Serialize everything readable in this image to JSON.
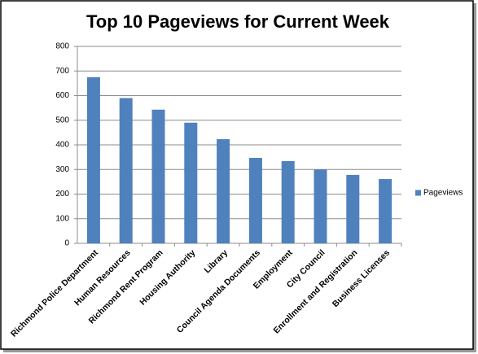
{
  "chart_data": {
    "type": "bar",
    "title": "Top 10 Pageviews for Current Week",
    "categories": [
      "Richmond Police Department",
      "Human Resources",
      "Richmond Rent Program",
      "Housing Authority",
      "Library",
      "Council Agenda Documents",
      "Employment",
      "City Council",
      "Enrollment and Registration",
      "Business Licenses"
    ],
    "series": [
      {
        "name": "Pageviews",
        "color": "#4f81bd",
        "values": [
          675,
          590,
          543,
          490,
          423,
          347,
          334,
          300,
          278,
          261
        ]
      }
    ],
    "ylim": [
      0,
      800
    ],
    "yticks": [
      0,
      100,
      200,
      300,
      400,
      500,
      600,
      700,
      800
    ],
    "grid": true,
    "legend": "right"
  }
}
